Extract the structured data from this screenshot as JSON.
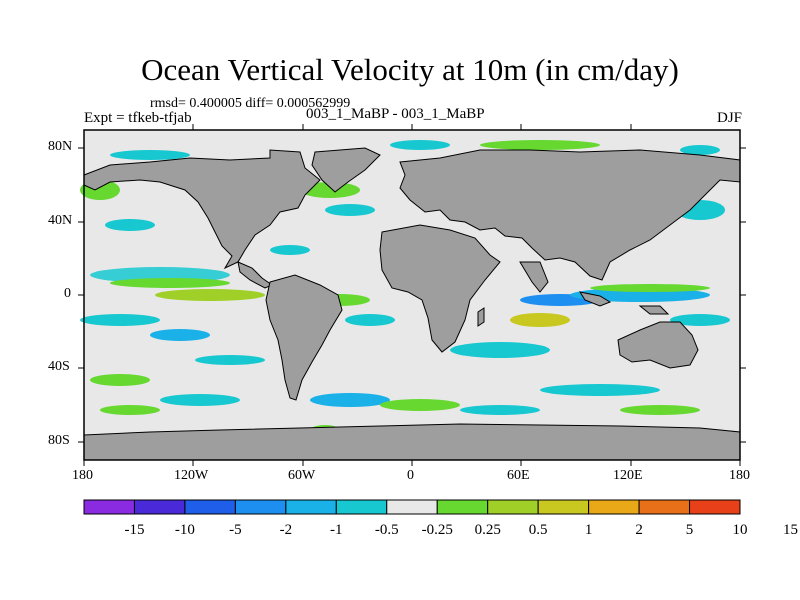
{
  "title": "Ocean Vertical Velocity at 10m (in cm/day)",
  "stats": "rmsd= 0.400005 diff= 0.000562999",
  "experiment": "Expt = tfkeb-tfjab",
  "case": "003_1_MaBP - 003_1_MaBP",
  "season": "DJF",
  "axes": {
    "lon_ticks": [
      "180",
      "120W",
      "60W",
      "0",
      "60E",
      "120E",
      "180"
    ],
    "lat_ticks": [
      "80N",
      "40N",
      "0",
      "40S",
      "80S"
    ]
  },
  "chart_data": {
    "type": "heatmap",
    "x_range": [
      -180,
      180
    ],
    "y_range": [
      -90,
      90
    ],
    "land_color": "#9e9e9e",
    "background_color": "#e8e8e8",
    "colorbar": {
      "colors": [
        "#8a2be2",
        "#4a2ad8",
        "#1e5ee8",
        "#1c8ff0",
        "#1ab0e8",
        "#18c8d0",
        "#e8e8e8",
        "#66d830",
        "#a0d028",
        "#c8c820",
        "#e8a818",
        "#e87018",
        "#e84018"
      ],
      "labels": [
        "-15",
        "-10",
        "-5",
        "-2",
        "-1",
        "-0.5",
        "-0.25",
        "0.25",
        "0.5",
        "1",
        "2",
        "5",
        "10",
        "15"
      ]
    }
  }
}
